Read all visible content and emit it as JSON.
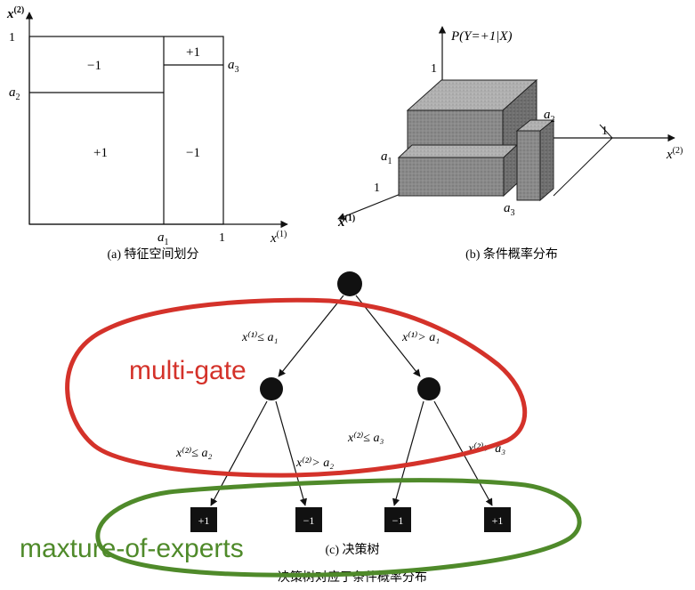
{
  "panel_a": {
    "y_axis_label": "x",
    "y_axis_sup": "(2)",
    "x_axis_label": "x",
    "x_axis_sup": "(1)",
    "tick_y_1": "1",
    "tick_y_a2": "a",
    "tick_y_a2_sub": "2",
    "tick_x_a1": "a",
    "tick_x_a1_sub": "1",
    "tick_x_1": "1",
    "tick_a3": "a",
    "tick_a3_sub": "3",
    "region_top_left": "−1",
    "region_top_right": "+1",
    "region_bottom_left": "+1",
    "region_bottom_right": "−1",
    "caption": "(a) 特征空间划分"
  },
  "panel_b": {
    "z_axis_label": "P(Y=+1|X)",
    "x2_axis_label": "x",
    "x2_axis_sup": "(2)",
    "x1_axis_label": "x",
    "x1_axis_sup": "(1)",
    "tick_z_1": "1",
    "tick_x1_1": "1",
    "tick_x2_1": "1",
    "tick_a1": "a",
    "tick_a1_sub": "1",
    "tick_a2": "a",
    "tick_a2_sub": "2",
    "tick_a3": "a",
    "tick_a3_sub": "3",
    "caption": "(b) 条件概率分布"
  },
  "panel_c": {
    "edge_root_left": "x⁽¹⁾≤ a₁",
    "edge_root_right": "x⁽¹⁾> a₁",
    "edge_left_left": "x⁽²⁾≤ a₂",
    "edge_left_right": "x⁽²⁾> a₂",
    "edge_right_left": "x⁽²⁾≤ a₃",
    "edge_right_right": "x⁽²⁾> a₃",
    "leaf_1": "+1",
    "leaf_2": "−1",
    "leaf_3": "−1",
    "leaf_4": "+1",
    "caption": "(c) 决策树",
    "bottom_caption": "决策树对应于条件概率分布"
  },
  "annotations": {
    "red_label": "multi-gate",
    "green_label": "maxture-of-experts",
    "red_color": "#d4322a",
    "green_color": "#4f8a2a"
  }
}
